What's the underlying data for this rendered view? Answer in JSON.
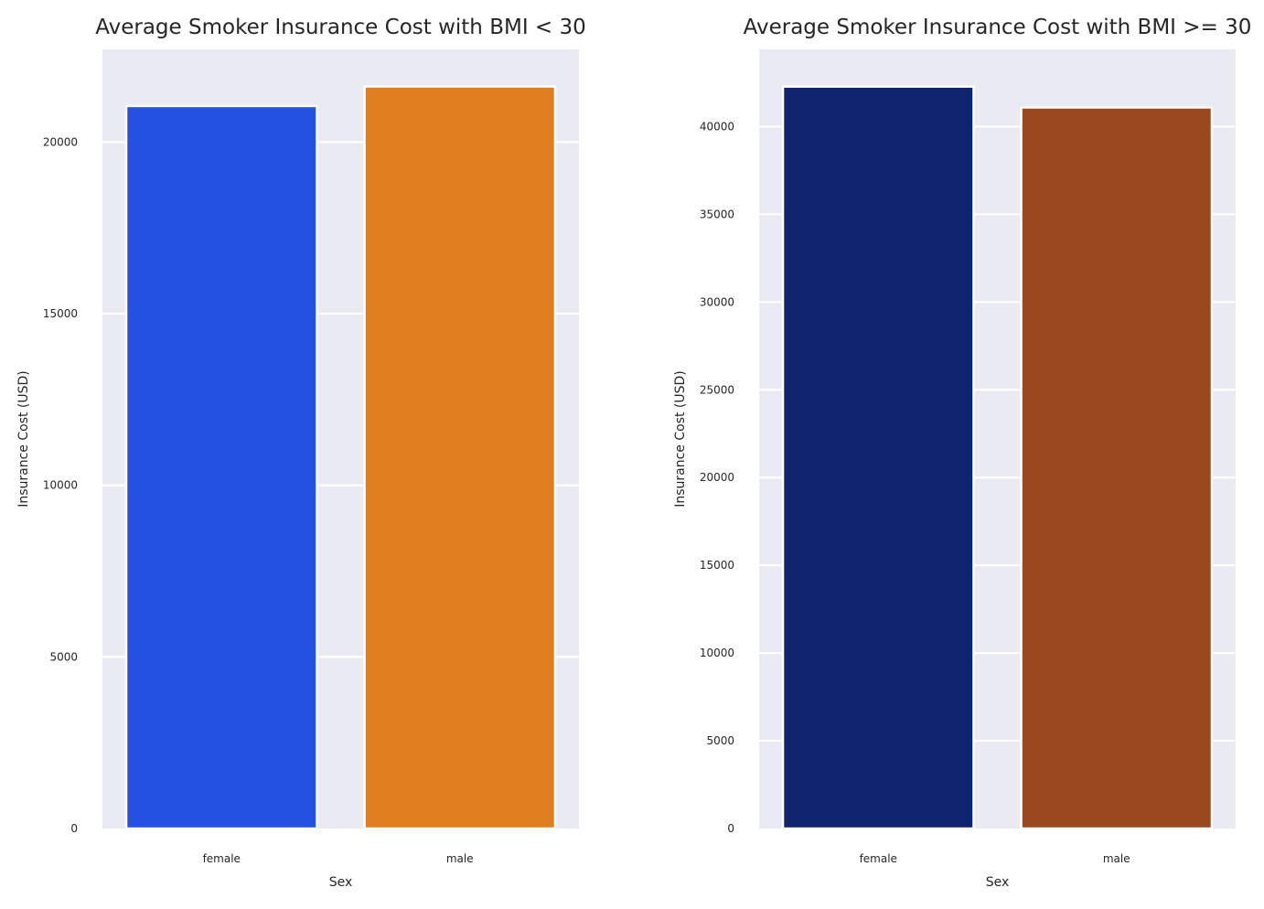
{
  "chart_data": [
    {
      "type": "bar",
      "title": "Average Smoker Insurance Cost with BMI < 30",
      "xlabel": "Sex",
      "ylabel": "Insurance Cost (USD)",
      "categories": [
        "female",
        "male"
      ],
      "values": [
        21050,
        21620
      ],
      "colors": [
        "#2351e0",
        "#e07e20"
      ],
      "ylim": [
        0,
        22700
      ],
      "yticks": [
        0,
        5000,
        10000,
        15000,
        20000
      ],
      "grid": true
    },
    {
      "type": "bar",
      "title": "Average Smoker Insurance Cost with BMI >= 30",
      "xlabel": "Sex",
      "ylabel": "Insurance Cost (USD)",
      "categories": [
        "female",
        "male"
      ],
      "values": [
        42280,
        41090
      ],
      "colors": [
        "#0e246f",
        "#9b4821"
      ],
      "ylim": [
        0,
        44400
      ],
      "yticks": [
        0,
        5000,
        10000,
        15000,
        20000,
        25000,
        30000,
        35000,
        40000
      ],
      "grid": true
    }
  ],
  "style": {
    "plot_background": "#eaeaf2",
    "grid_color": "#ffffff",
    "bar_edge": "#ffffff"
  }
}
